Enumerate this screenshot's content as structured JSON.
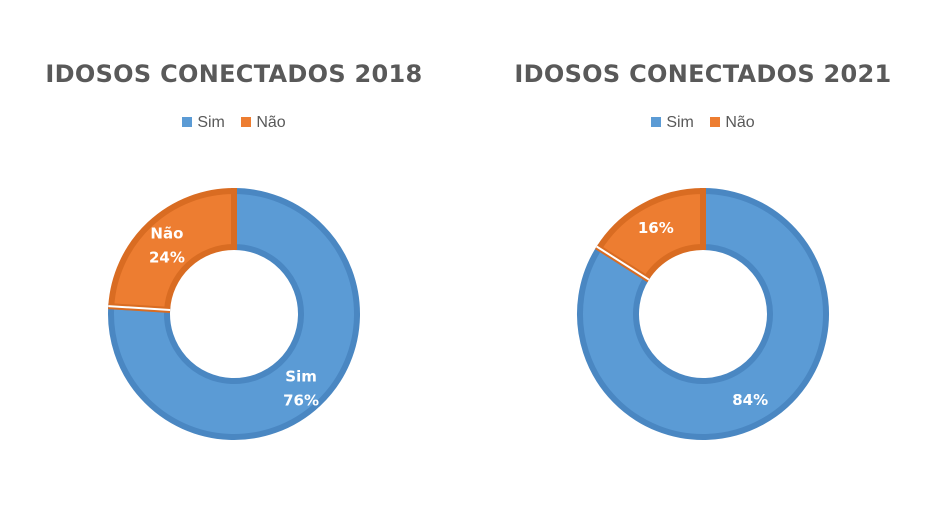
{
  "chart_data": [
    {
      "type": "pie",
      "title": "IDOSOS CONECTADOS 2018",
      "legend_position": "top",
      "categories": [
        "Sim",
        "Não"
      ],
      "values": [
        76,
        24
      ],
      "data_labels": [
        {
          "category": "Sim",
          "value": "76%"
        },
        {
          "category": "Não",
          "value": "24%"
        }
      ],
      "colors": [
        "#5B9BD5",
        "#ED7D31"
      ],
      "show_category_in_labels": true
    },
    {
      "type": "pie",
      "title": "IDOSOS CONECTADOS 2021",
      "legend_position": "top",
      "categories": [
        "Sim",
        "Não"
      ],
      "values": [
        84,
        16
      ],
      "data_labels": [
        {
          "category": "Sim",
          "value": "84%"
        },
        {
          "category": "Não",
          "value": "16%"
        }
      ],
      "colors": [
        "#5B9BD5",
        "#ED7D31"
      ],
      "show_category_in_labels": false
    }
  ]
}
